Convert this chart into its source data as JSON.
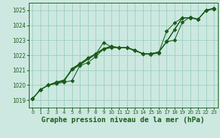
{
  "bg_color": "#cce8e0",
  "grid_color": "#99ccbb",
  "line_color": "#1a5c1a",
  "title": "Graphe pression niveau de la mer (hPa)",
  "title_fontsize": 7.5,
  "ylim": [
    1018.5,
    1025.5
  ],
  "xlim": [
    -0.5,
    23.5
  ],
  "yticks": [
    1019,
    1020,
    1021,
    1022,
    1023,
    1024,
    1025
  ],
  "xticks": [
    0,
    1,
    2,
    3,
    4,
    5,
    6,
    7,
    8,
    9,
    10,
    11,
    12,
    13,
    14,
    15,
    16,
    17,
    18,
    19,
    20,
    21,
    22,
    23
  ],
  "series": [
    [
      1019.1,
      1019.7,
      1020.0,
      1020.1,
      1020.2,
      1020.3,
      1021.3,
      1021.5,
      1021.9,
      1022.4,
      1022.5,
      1022.5,
      1022.5,
      1022.3,
      1022.1,
      1022.1,
      1022.2,
      1022.9,
      1023.7,
      1024.5,
      1024.5,
      1024.4,
      1025.0,
      1025.1
    ],
    [
      1019.1,
      1019.7,
      1020.0,
      1020.2,
      1020.3,
      1021.0,
      1021.35,
      1021.7,
      1022.05,
      1022.4,
      1022.55,
      1022.5,
      1022.5,
      1022.35,
      1022.1,
      1022.1,
      1022.2,
      1022.9,
      1023.7,
      1024.5,
      1024.5,
      1024.4,
      1025.0,
      1025.1
    ],
    [
      1019.1,
      1019.7,
      1020.0,
      1020.2,
      1020.35,
      1021.05,
      1021.4,
      1021.75,
      1022.1,
      1022.45,
      1022.6,
      1022.5,
      1022.5,
      1022.3,
      1022.1,
      1022.1,
      1022.2,
      1022.9,
      1023.7,
      1024.5,
      1024.5,
      1024.4,
      1025.0,
      1025.1
    ],
    [
      1019.1,
      1019.7,
      1020.0,
      1020.15,
      1020.25,
      1021.1,
      1021.45,
      1021.8,
      1022.05,
      1022.85,
      1022.55,
      1022.5,
      1022.5,
      1022.3,
      1022.1,
      1022.05,
      1022.15,
      1023.6,
      1024.15,
      1024.5,
      1024.5,
      1024.4,
      1025.0,
      1025.1
    ],
    [
      1019.1,
      1019.7,
      1020.0,
      1020.2,
      1020.3,
      1021.1,
      1021.4,
      1021.8,
      1022.1,
      1022.4,
      1022.6,
      1022.5,
      1022.5,
      1022.3,
      1022.1,
      1022.1,
      1022.2,
      1022.9,
      1023.0,
      1024.2,
      1024.55,
      1024.4,
      1025.0,
      1025.15
    ]
  ],
  "marker_series": [
    0,
    3,
    4
  ],
  "marker_size": 2.8,
  "linewidth": 0.8
}
